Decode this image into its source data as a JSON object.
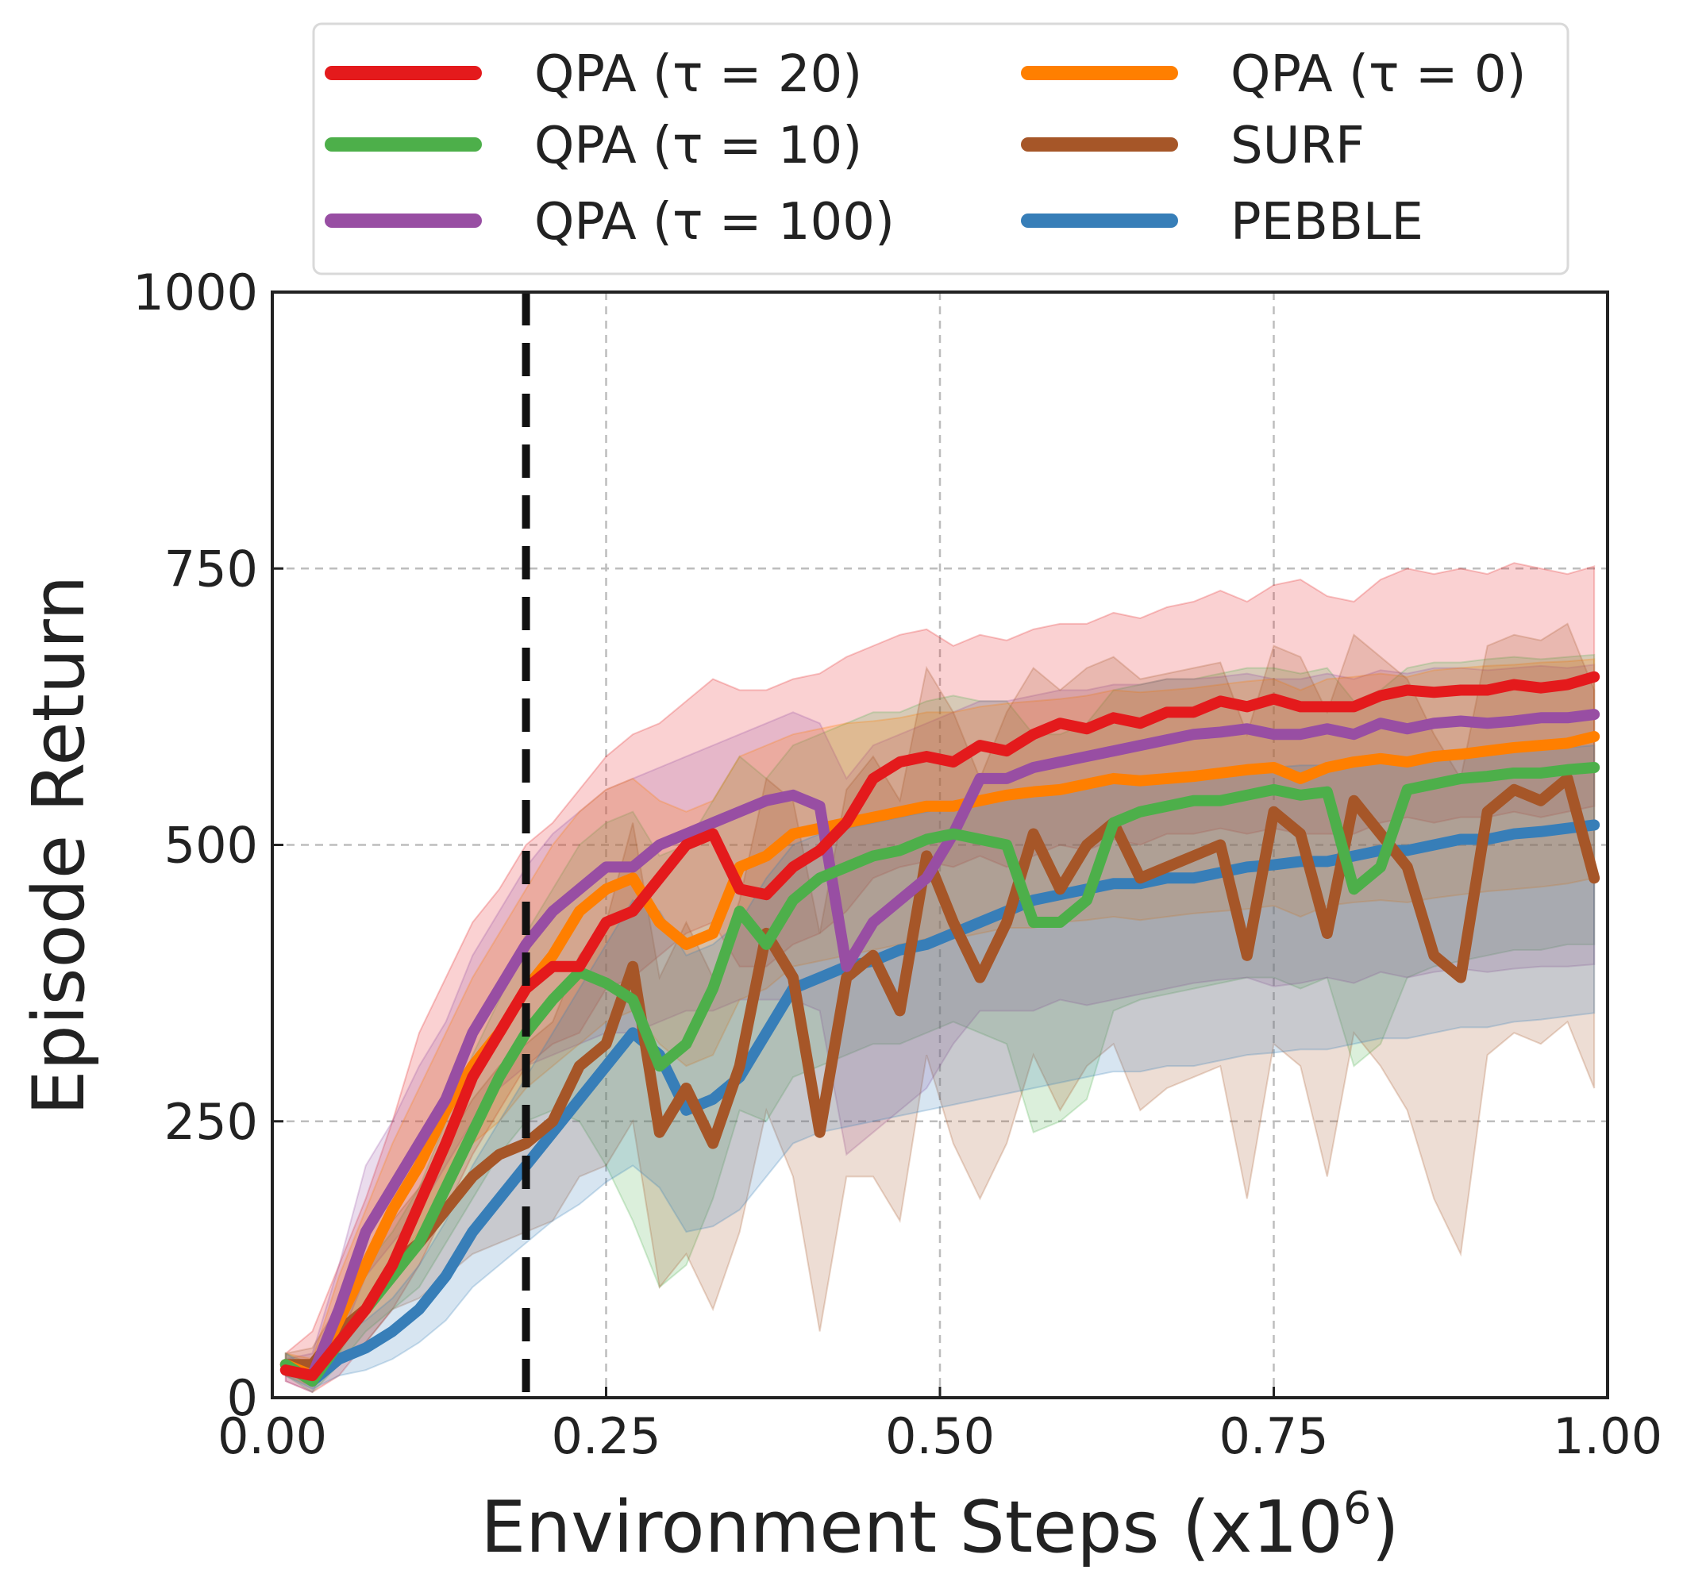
{
  "chart_data": {
    "type": "line",
    "xlabel": "Environment Steps (x10",
    "xlabel_sup": "6",
    "xlabel_close": ")",
    "ylabel": "Episode Return",
    "xlim": [
      0.0,
      1.0
    ],
    "ylim": [
      0,
      1000
    ],
    "x_ticks": [
      "0.00",
      "0.25",
      "0.50",
      "0.75",
      "1.00"
    ],
    "y_ticks": [
      "0",
      "250",
      "500",
      "750",
      "1000"
    ],
    "grid": true,
    "legend_position": "top, outside plot",
    "vertical_marker_x": 0.19,
    "series": [
      {
        "name": "QPA (τ = 20)",
        "color": "#e41a1c",
        "x": [
          0.01,
          0.03,
          0.05,
          0.07,
          0.09,
          0.11,
          0.13,
          0.15,
          0.17,
          0.19,
          0.21,
          0.23,
          0.25,
          0.27,
          0.29,
          0.31,
          0.33,
          0.35,
          0.37,
          0.39,
          0.41,
          0.43,
          0.45,
          0.47,
          0.49,
          0.51,
          0.53,
          0.55,
          0.57,
          0.59,
          0.61,
          0.63,
          0.65,
          0.67,
          0.69,
          0.71,
          0.73,
          0.75,
          0.77,
          0.79,
          0.81,
          0.83,
          0.85,
          0.87,
          0.89,
          0.91,
          0.93,
          0.95,
          0.97,
          0.99
        ],
        "y": [
          25,
          20,
          50,
          80,
          120,
          175,
          230,
          290,
          330,
          370,
          390,
          390,
          430,
          440,
          470,
          500,
          510,
          460,
          455,
          480,
          495,
          520,
          560,
          575,
          580,
          575,
          590,
          585,
          600,
          610,
          605,
          615,
          610,
          620,
          620,
          630,
          625,
          632,
          625,
          625,
          625,
          635,
          640,
          638,
          640,
          640,
          645,
          642,
          645,
          652
        ],
        "lower": [
          15,
          5,
          20,
          50,
          80,
          120,
          170,
          220,
          260,
          300,
          320,
          330,
          370,
          380,
          400,
          420,
          430,
          390,
          390,
          410,
          420,
          440,
          470,
          480,
          485,
          480,
          490,
          480,
          490,
          500,
          495,
          505,
          500,
          510,
          510,
          515,
          510,
          515,
          510,
          510,
          510,
          520,
          525,
          520,
          525,
          525,
          530,
          525,
          530,
          535
        ],
        "upper": [
          40,
          60,
          120,
          180,
          250,
          330,
          380,
          430,
          460,
          500,
          520,
          550,
          580,
          600,
          610,
          630,
          650,
          640,
          640,
          650,
          655,
          670,
          680,
          690,
          695,
          680,
          690,
          685,
          695,
          700,
          700,
          710,
          705,
          715,
          720,
          730,
          720,
          735,
          740,
          725,
          720,
          740,
          750,
          745,
          750,
          745,
          755,
          750,
          745,
          752
        ]
      },
      {
        "name": "QPA (τ = 10)",
        "color": "#4daf4a",
        "x": [
          0.01,
          0.03,
          0.05,
          0.07,
          0.09,
          0.11,
          0.13,
          0.15,
          0.17,
          0.19,
          0.21,
          0.23,
          0.25,
          0.27,
          0.29,
          0.31,
          0.33,
          0.35,
          0.37,
          0.39,
          0.41,
          0.43,
          0.45,
          0.47,
          0.49,
          0.51,
          0.53,
          0.55,
          0.57,
          0.59,
          0.61,
          0.63,
          0.65,
          0.67,
          0.69,
          0.71,
          0.73,
          0.75,
          0.77,
          0.79,
          0.81,
          0.83,
          0.85,
          0.87,
          0.89,
          0.91,
          0.93,
          0.95,
          0.97,
          0.99
        ],
        "y": [
          30,
          15,
          50,
          80,
          110,
          140,
          190,
          240,
          290,
          330,
          360,
          385,
          375,
          360,
          300,
          320,
          370,
          440,
          410,
          450,
          470,
          480,
          490,
          495,
          505,
          510,
          505,
          500,
          430,
          430,
          450,
          520,
          530,
          535,
          540,
          540,
          545,
          550,
          545,
          548,
          460,
          480,
          550,
          555,
          560,
          562,
          565,
          565,
          568,
          570
        ],
        "lower": [
          20,
          5,
          30,
          60,
          80,
          100,
          140,
          180,
          220,
          250,
          260,
          250,
          210,
          160,
          100,
          120,
          180,
          260,
          250,
          290,
          300,
          310,
          320,
          320,
          330,
          340,
          330,
          320,
          240,
          250,
          270,
          350,
          360,
          365,
          370,
          375,
          380,
          380,
          370,
          380,
          300,
          320,
          380,
          390,
          395,
          400,
          405,
          405,
          410,
          410
        ],
        "upper": [
          40,
          30,
          80,
          120,
          150,
          190,
          250,
          310,
          360,
          420,
          460,
          500,
          520,
          530,
          490,
          500,
          540,
          580,
          560,
          590,
          600,
          610,
          620,
          620,
          630,
          635,
          630,
          630,
          600,
          600,
          610,
          640,
          645,
          650,
          650,
          655,
          660,
          660,
          655,
          660,
          630,
          640,
          660,
          665,
          665,
          668,
          670,
          668,
          670,
          672
        ]
      },
      {
        "name": "QPA (τ = 100)",
        "color": "#984ea3",
        "x": [
          0.01,
          0.03,
          0.05,
          0.07,
          0.09,
          0.11,
          0.13,
          0.15,
          0.17,
          0.19,
          0.21,
          0.23,
          0.25,
          0.27,
          0.29,
          0.31,
          0.33,
          0.35,
          0.37,
          0.39,
          0.41,
          0.43,
          0.45,
          0.47,
          0.49,
          0.51,
          0.53,
          0.55,
          0.57,
          0.59,
          0.61,
          0.63,
          0.65,
          0.67,
          0.69,
          0.71,
          0.73,
          0.75,
          0.77,
          0.79,
          0.81,
          0.83,
          0.85,
          0.87,
          0.89,
          0.91,
          0.93,
          0.95,
          0.97,
          0.99
        ],
        "y": [
          25,
          20,
          80,
          150,
          190,
          230,
          270,
          330,
          370,
          410,
          440,
          460,
          480,
          480,
          500,
          510,
          520,
          530,
          540,
          545,
          535,
          390,
          430,
          450,
          470,
          510,
          560,
          560,
          570,
          575,
          580,
          585,
          590,
          595,
          600,
          602,
          605,
          600,
          600,
          605,
          600,
          610,
          605,
          610,
          612,
          610,
          612,
          615,
          615,
          618
        ],
        "lower": [
          15,
          5,
          50,
          110,
          140,
          170,
          210,
          250,
          280,
          300,
          310,
          320,
          330,
          330,
          340,
          350,
          350,
          360,
          360,
          360,
          350,
          220,
          240,
          260,
          280,
          320,
          350,
          350,
          350,
          360,
          355,
          360,
          365,
          370,
          375,
          378,
          380,
          372,
          375,
          380,
          375,
          385,
          380,
          385,
          388,
          385,
          388,
          390,
          390,
          392
        ],
        "upper": [
          35,
          40,
          120,
          210,
          250,
          300,
          340,
          400,
          440,
          480,
          510,
          530,
          550,
          560,
          570,
          580,
          590,
          600,
          610,
          620,
          610,
          560,
          590,
          600,
          610,
          620,
          630,
          630,
          635,
          640,
          640,
          645,
          645,
          650,
          650,
          652,
          655,
          650,
          650,
          655,
          650,
          658,
          655,
          660,
          660,
          658,
          660,
          662,
          660,
          663
        ]
      },
      {
        "name": "QPA (τ = 0)",
        "color": "#ff7f00",
        "x": [
          0.01,
          0.03,
          0.05,
          0.07,
          0.09,
          0.11,
          0.13,
          0.15,
          0.17,
          0.19,
          0.21,
          0.23,
          0.25,
          0.27,
          0.29,
          0.31,
          0.33,
          0.35,
          0.37,
          0.39,
          0.41,
          0.43,
          0.45,
          0.47,
          0.49,
          0.51,
          0.53,
          0.55,
          0.57,
          0.59,
          0.61,
          0.63,
          0.65,
          0.67,
          0.69,
          0.71,
          0.73,
          0.75,
          0.77,
          0.79,
          0.81,
          0.83,
          0.85,
          0.87,
          0.89,
          0.91,
          0.93,
          0.95,
          0.97,
          0.99
        ],
        "y": [
          30,
          20,
          70,
          120,
          170,
          210,
          260,
          300,
          330,
          370,
          400,
          440,
          460,
          470,
          430,
          410,
          420,
          480,
          490,
          510,
          515,
          520,
          525,
          530,
          535,
          535,
          540,
          545,
          548,
          550,
          555,
          560,
          558,
          560,
          562,
          565,
          568,
          570,
          560,
          570,
          575,
          578,
          575,
          580,
          582,
          585,
          588,
          590,
          592,
          598
        ],
        "lower": [
          20,
          10,
          40,
          80,
          120,
          150,
          190,
          230,
          250,
          280,
          300,
          320,
          340,
          350,
          320,
          300,
          310,
          360,
          370,
          390,
          395,
          400,
          405,
          410,
          415,
          415,
          420,
          425,
          425,
          430,
          432,
          435,
          432,
          435,
          438,
          440,
          442,
          445,
          435,
          445,
          448,
          450,
          448,
          452,
          455,
          458,
          460,
          462,
          465,
          470
        ],
        "upper": [
          40,
          35,
          110,
          170,
          230,
          280,
          330,
          380,
          420,
          460,
          500,
          530,
          550,
          560,
          540,
          530,
          540,
          580,
          590,
          600,
          605,
          610,
          612,
          615,
          620,
          620,
          625,
          628,
          630,
          632,
          635,
          640,
          638,
          640,
          642,
          645,
          648,
          650,
          640,
          650,
          652,
          655,
          652,
          658,
          660,
          662,
          663,
          665,
          666,
          668
        ]
      },
      {
        "name": "SURF",
        "color": "#a65628",
        "x": [
          0.01,
          0.03,
          0.05,
          0.07,
          0.09,
          0.11,
          0.13,
          0.15,
          0.17,
          0.19,
          0.21,
          0.23,
          0.25,
          0.27,
          0.29,
          0.31,
          0.33,
          0.35,
          0.37,
          0.39,
          0.41,
          0.43,
          0.45,
          0.47,
          0.49,
          0.51,
          0.53,
          0.55,
          0.57,
          0.59,
          0.61,
          0.63,
          0.65,
          0.67,
          0.69,
          0.71,
          0.73,
          0.75,
          0.77,
          0.79,
          0.81,
          0.83,
          0.85,
          0.87,
          0.89,
          0.91,
          0.93,
          0.95,
          0.97,
          0.99
        ],
        "y": [
          30,
          30,
          60,
          80,
          120,
          140,
          170,
          200,
          220,
          230,
          250,
          300,
          320,
          390,
          240,
          280,
          230,
          300,
          420,
          380,
          240,
          380,
          400,
          350,
          490,
          430,
          380,
          430,
          510,
          460,
          500,
          520,
          470,
          480,
          490,
          500,
          400,
          530,
          510,
          420,
          540,
          510,
          480,
          400,
          380,
          530,
          550,
          540,
          560,
          470
        ],
        "lower": [
          20,
          15,
          35,
          50,
          80,
          90,
          110,
          130,
          140,
          150,
          160,
          200,
          210,
          250,
          100,
          130,
          80,
          150,
          260,
          200,
          60,
          200,
          200,
          160,
          310,
          230,
          180,
          230,
          310,
          260,
          300,
          320,
          260,
          280,
          290,
          300,
          180,
          320,
          300,
          200,
          330,
          300,
          260,
          180,
          130,
          310,
          330,
          320,
          340,
          280
        ],
        "upper": [
          40,
          45,
          85,
          110,
          160,
          190,
          230,
          270,
          300,
          320,
          340,
          400,
          430,
          520,
          380,
          430,
          380,
          450,
          560,
          540,
          420,
          550,
          580,
          540,
          660,
          620,
          560,
          620,
          660,
          640,
          660,
          670,
          650,
          655,
          660,
          665,
          600,
          680,
          670,
          620,
          690,
          670,
          650,
          600,
          560,
          680,
          690,
          685,
          700,
          640
        ]
      },
      {
        "name": "PEBBLE",
        "color": "#377eb8",
        "x": [
          0.01,
          0.03,
          0.05,
          0.07,
          0.09,
          0.11,
          0.13,
          0.15,
          0.17,
          0.19,
          0.21,
          0.23,
          0.25,
          0.27,
          0.29,
          0.31,
          0.33,
          0.35,
          0.37,
          0.39,
          0.41,
          0.43,
          0.45,
          0.47,
          0.49,
          0.51,
          0.53,
          0.55,
          0.57,
          0.59,
          0.61,
          0.63,
          0.65,
          0.67,
          0.69,
          0.71,
          0.73,
          0.75,
          0.77,
          0.79,
          0.81,
          0.83,
          0.85,
          0.87,
          0.89,
          0.91,
          0.93,
          0.95,
          0.97,
          0.99
        ],
        "y": [
          30,
          15,
          35,
          45,
          60,
          80,
          110,
          150,
          180,
          210,
          240,
          270,
          300,
          330,
          310,
          260,
          270,
          290,
          330,
          370,
          380,
          390,
          395,
          405,
          410,
          420,
          430,
          440,
          450,
          455,
          460,
          465,
          465,
          470,
          470,
          475,
          480,
          482,
          485,
          485,
          490,
          495,
          495,
          500,
          505,
          505,
          510,
          512,
          515,
          518
        ],
        "lower": [
          20,
          8,
          20,
          25,
          35,
          50,
          70,
          100,
          120,
          140,
          160,
          175,
          195,
          210,
          190,
          150,
          155,
          170,
          200,
          230,
          240,
          245,
          250,
          255,
          260,
          265,
          270,
          275,
          280,
          285,
          290,
          295,
          295,
          300,
          300,
          305,
          310,
          312,
          315,
          315,
          320,
          325,
          325,
          330,
          335,
          335,
          340,
          342,
          345,
          348
        ],
        "upper": [
          40,
          25,
          55,
          70,
          90,
          120,
          160,
          210,
          250,
          290,
          330,
          370,
          410,
          450,
          440,
          400,
          410,
          430,
          470,
          500,
          510,
          515,
          520,
          525,
          530,
          535,
          540,
          545,
          550,
          552,
          555,
          558,
          558,
          560,
          562,
          565,
          568,
          570,
          572,
          572,
          575,
          578,
          578,
          580,
          582,
          582,
          585,
          586,
          588,
          590
        ]
      }
    ]
  }
}
